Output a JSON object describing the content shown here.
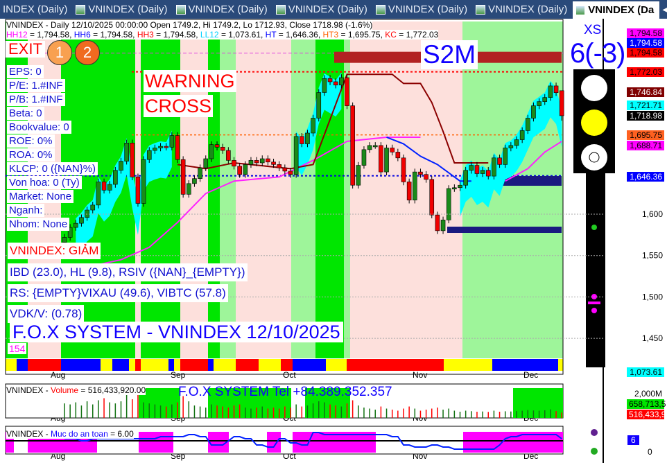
{
  "tabs": [
    {
      "label": "INDEX (Daily)"
    },
    {
      "label": "VNINDEX (Daily)"
    },
    {
      "label": "VNINDEX (Daily)"
    },
    {
      "label": "VNINDEX (Daily)"
    },
    {
      "label": "VNINDEX (Daily)"
    },
    {
      "label": "VNINDEX (Daily)"
    },
    {
      "label": "VNINDEX (Da",
      "active": true
    }
  ],
  "header": {
    "line1": "VNINDEX - Daily 12/10/2025 00:00:00 Open 1749.2, Hi 1749.2, Lo 1712.93, Close 1718.98 (-1.6%)",
    "line2": [
      {
        "t": "HH12",
        "c": "#ff00ff"
      },
      {
        "t": " = 1,794.58, ",
        "c": "#000"
      },
      {
        "t": "HH6",
        "c": "#0000ff"
      },
      {
        "t": " = 1,794.58, ",
        "c": "#000"
      },
      {
        "t": "HH3",
        "c": "#ff0000"
      },
      {
        "t": " = 1,794.58, ",
        "c": "#000"
      },
      {
        "t": "LL12",
        "c": "#00d0ff"
      },
      {
        "t": " = 1,073.61, ",
        "c": "#000"
      },
      {
        "t": "HT",
        "c": "#0000ff"
      },
      {
        "t": "  = 1,646.36, ",
        "c": "#000"
      },
      {
        "t": "HT3",
        "c": "#ff6000"
      },
      {
        "t": "  = 1,695.75, ",
        "c": "#000"
      },
      {
        "t": "KC",
        "c": "#ff0000"
      },
      {
        "t": " = 1,772.03",
        "c": "#000"
      }
    ]
  },
  "exit": {
    "label": "EXIT",
    "badges": [
      "1",
      "2"
    ]
  },
  "warning": [
    "WARNING",
    "CROSS"
  ],
  "s2m": "S2M",
  "signal": {
    "title": "XS",
    "value": "6(-3)"
  },
  "fundamentals": [
    "EPS: 0",
    "P/E: 1.#INF",
    "P/B: 1.#INF",
    "Beta: 0",
    "Bookvalue: 0",
    "ROE: 0%",
    "ROA: 0%",
    "KLCP: 0 ({NAN}%)",
    "Von hoa: 0 (Ty)",
    "Market: None",
    "Nganh:",
    "Nhom: None"
  ],
  "status": "VNINDEX: GIẢM",
  "stats": [
    "IBD (23.0), HL (9.8), RSIV ({NAN}_{EMPTY})",
    "RS: {EMPTY}VIXAU (49.6), VIBTC (57.8)",
    "VDK/V:  (0.78)"
  ],
  "system_title": "F.O.X SYSTEM - VNINDEX 12/10/2025",
  "counter": "154",
  "price_axis": {
    "ticks": [
      "1,600",
      "1,550",
      "1,500",
      "1,450"
    ],
    "labels": [
      {
        "v": "1,794.58",
        "bg": "#ff00ff",
        "fg": "#000"
      },
      {
        "v": "1,794.58",
        "bg": "#0000ff",
        "fg": "#fff"
      },
      {
        "v": "1,794.58",
        "bg": "#ff0000",
        "fg": "#000"
      },
      {
        "v": "1,772.03",
        "bg": "#ff0000",
        "fg": "#000"
      },
      {
        "v": "1,746.84",
        "bg": "#800000",
        "fg": "#fff"
      },
      {
        "v": "1,721.71",
        "bg": "#00ffff",
        "fg": "#000"
      },
      {
        "v": "1,718.98",
        "bg": "#000000",
        "fg": "#fff"
      },
      {
        "v": "1,695.75",
        "bg": "#ff6020",
        "fg": "#000"
      },
      {
        "v": "1,688.71",
        "bg": "#ff00ff",
        "fg": "#000"
      },
      {
        "v": "1,646.36",
        "bg": "#0000ff",
        "fg": "#fff"
      },
      {
        "v": "1,073.61",
        "bg": "#00ffff",
        "fg": "#000"
      }
    ]
  },
  "volume_panel": {
    "title_prefix": "VNINDEX - ",
    "title_name": "Volume",
    "title_value": " = 516,433,920.00",
    "banner": "F.O.X SYSTEM Tel +84.389.352.357",
    "axis": [
      "2,000M",
      "658,713,5",
      "516,433,9"
    ]
  },
  "safety_panel": {
    "title_prefix": "VNINDEX - ",
    "title_name": "Muc do an toan",
    "title_value": " = 6.00",
    "axis": [
      "6",
      "0"
    ]
  },
  "chart_data": {
    "type": "candlestick",
    "symbol": "VNINDEX",
    "x_ticks": [
      "Aug",
      "Sep",
      "Oct",
      "Nov",
      "Dec"
    ],
    "ylim": [
      1420,
      1800
    ],
    "close": [
      1572,
      1584,
      1589,
      1596,
      1605,
      1611,
      1639,
      1629,
      1636,
      1653,
      1664,
      1686,
      1645,
      1613,
      1666,
      1677,
      1680,
      1682,
      1681,
      1695,
      1666,
      1624,
      1637,
      1643,
      1656,
      1667,
      1684,
      1681,
      1677,
      1665,
      1658,
      1648,
      1660,
      1665,
      1662,
      1667,
      1663,
      1660,
      1656,
      1652,
      1648,
      1694,
      1685,
      1698,
      1716,
      1747,
      1764,
      1760,
      1756,
      1765,
      1731,
      1635,
      1659,
      1678,
      1683,
      1683,
      1651,
      1680,
      1675,
      1668,
      1639,
      1617,
      1651,
      1648,
      1642,
      1599,
      1580,
      1593,
      1631,
      1632,
      1635,
      1653,
      1659,
      1649,
      1653,
      1646,
      1668,
      1660,
      1680,
      1683,
      1690,
      1701,
      1716,
      1731,
      1736,
      1741,
      1755,
      1746.84,
      1718.98
    ],
    "last": {
      "open": 1749.2,
      "high": 1749.2,
      "low": 1712.93,
      "close": 1718.98,
      "change_pct": -1.6
    },
    "levels": {
      "HH12": 1794.58,
      "HH6": 1794.58,
      "HH3": 1794.58,
      "LL12": 1073.61,
      "HT": 1646.36,
      "HT3": 1695.75,
      "KC": 1772.03
    },
    "overlays": {
      "pink": [
        [
          0,
          1530
        ],
        [
          10,
          1545
        ],
        [
          15,
          1560
        ],
        [
          20,
          1590
        ],
        [
          25,
          1625
        ],
        [
          30,
          1640
        ],
        [
          38,
          1645
        ],
        [
          44,
          1665
        ],
        [
          50,
          1688
        ],
        [
          57,
          1693
        ],
        [
          63,
          1693
        ]
      ],
      "pink2": [
        [
          78,
          1640
        ],
        [
          82,
          1655
        ],
        [
          85,
          1675
        ],
        [
          88,
          1688
        ]
      ],
      "blue": [
        [
          57,
          1693
        ],
        [
          60,
          1685
        ],
        [
          63,
          1670
        ],
        [
          66,
          1660
        ],
        [
          70,
          1640
        ],
        [
          72,
          1640
        ]
      ],
      "maroon": [
        [
          20,
          1660
        ],
        [
          25,
          1655
        ],
        [
          30,
          1662
        ],
        [
          40,
          1655
        ],
        [
          44,
          1660
        ],
        [
          50,
          1769
        ],
        [
          58,
          1769
        ],
        [
          60,
          1758
        ],
        [
          63,
          1758
        ],
        [
          65,
          1735
        ],
        [
          67,
          1700
        ],
        [
          69,
          1662
        ],
        [
          75,
          1662
        ]
      ]
    },
    "volume_m": [
      1400,
      1300,
      1500,
      1200,
      1600,
      1300,
      1700,
      1900,
      1500,
      1400,
      1600,
      2500,
      1800,
      2300,
      1500,
      1400,
      1300,
      1200,
      1100,
      1300,
      1500,
      2100,
      1600,
      1200,
      1100,
      1000,
      1300,
      1200,
      1100,
      1000,
      1200,
      1300,
      1000,
      900,
      1000,
      1100,
      900,
      1000,
      900,
      1100,
      1000,
      1300,
      1100,
      1200,
      1400,
      1600,
      1500,
      1300,
      1200,
      1100,
      1400,
      1700,
      1200,
      1000,
      900,
      800,
      1100,
      900,
      800,
      700,
      900,
      1100,
      900,
      700,
      800,
      900,
      1000,
      800,
      900,
      700,
      600,
      700,
      650,
      600,
      620,
      580,
      700,
      600,
      640,
      620,
      660,
      700,
      760,
      720,
      700,
      740,
      820,
      658.7,
      516.4
    ],
    "safety": [
      6,
      6,
      6,
      5,
      5,
      6,
      6,
      6,
      6,
      6,
      6,
      6,
      6,
      6,
      6,
      6,
      6,
      7,
      7,
      7,
      7,
      7,
      8,
      8,
      7,
      7,
      3,
      3,
      3,
      5,
      7,
      7,
      6,
      6,
      3,
      3,
      2,
      2,
      6,
      6,
      4,
      4,
      3,
      3,
      9,
      9,
      8,
      8,
      8,
      8,
      8,
      8,
      8,
      8,
      8,
      8,
      8,
      8,
      7,
      7,
      3,
      3,
      2,
      2,
      2,
      3,
      3,
      2,
      2,
      1,
      1,
      1,
      1,
      1,
      1,
      1,
      1,
      3,
      6,
      7,
      7,
      8,
      8,
      8,
      8,
      8,
      8,
      8,
      6
    ]
  }
}
